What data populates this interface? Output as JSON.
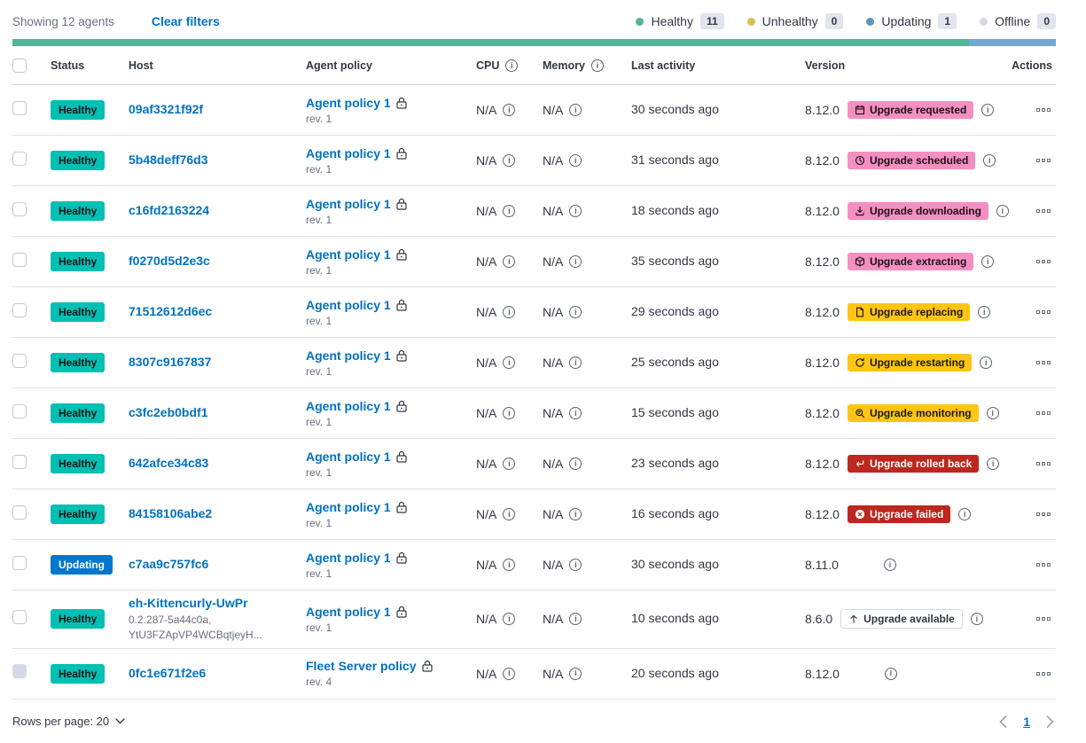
{
  "header": {
    "showing": "Showing 12 agents",
    "clear_filters": "Clear filters",
    "legend": [
      {
        "label": "Healthy",
        "count": "11",
        "color": "#54B399"
      },
      {
        "label": "Unhealthy",
        "count": "0",
        "color": "#D6BF57"
      },
      {
        "label": "Updating",
        "count": "1",
        "color": "#6092C0"
      },
      {
        "label": "Offline",
        "count": "0",
        "color": "#D3DAE6"
      }
    ],
    "status_bar_segments": [
      {
        "color": "#54B399",
        "fraction": 0.9167
      },
      {
        "color": "#73A6D3",
        "fraction": 0.0833
      }
    ]
  },
  "table": {
    "columns": {
      "status": "Status",
      "host": "Host",
      "policy": "Agent policy",
      "cpu": "CPU",
      "memory": "Memory",
      "last_activity": "Last activity",
      "version": "Version",
      "actions": "Actions"
    },
    "rows": [
      {
        "status": "Healthy",
        "host": "09af3321f92f",
        "policy": "Agent policy 1",
        "revision": "rev. 1",
        "cpu": "N/A",
        "memory": "N/A",
        "last_activity": "30 seconds ago",
        "version": "8.12.0",
        "badge": {
          "label": "Upgrade requested",
          "icon": "calendar-icon",
          "style": "pink"
        },
        "badge_info": true,
        "version_info": false,
        "checkbox_disabled": false
      },
      {
        "status": "Healthy",
        "host": "5b48deff76d3",
        "policy": "Agent policy 1",
        "revision": "rev. 1",
        "cpu": "N/A",
        "memory": "N/A",
        "last_activity": "31 seconds ago",
        "version": "8.12.0",
        "badge": {
          "label": "Upgrade scheduled",
          "icon": "clock-icon",
          "style": "pink"
        },
        "badge_info": true,
        "version_info": false,
        "checkbox_disabled": false
      },
      {
        "status": "Healthy",
        "host": "c16fd2163224",
        "policy": "Agent policy 1",
        "revision": "rev. 1",
        "cpu": "N/A",
        "memory": "N/A",
        "last_activity": "18 seconds ago",
        "version": "8.12.0",
        "badge": {
          "label": "Upgrade downloading",
          "icon": "download-icon",
          "style": "pink"
        },
        "badge_info": true,
        "version_info": false,
        "checkbox_disabled": false
      },
      {
        "status": "Healthy",
        "host": "f0270d5d2e3c",
        "policy": "Agent policy 1",
        "revision": "rev. 1",
        "cpu": "N/A",
        "memory": "N/A",
        "last_activity": "35 seconds ago",
        "version": "8.12.0",
        "badge": {
          "label": "Upgrade extracting",
          "icon": "package-icon",
          "style": "pink"
        },
        "badge_info": true,
        "version_info": false,
        "checkbox_disabled": false
      },
      {
        "status": "Healthy",
        "host": "71512612d6ec",
        "policy": "Agent policy 1",
        "revision": "rev. 1",
        "cpu": "N/A",
        "memory": "N/A",
        "last_activity": "29 seconds ago",
        "version": "8.12.0",
        "badge": {
          "label": "Upgrade replacing",
          "icon": "document-icon",
          "style": "yellow"
        },
        "badge_info": true,
        "version_info": false,
        "checkbox_disabled": false
      },
      {
        "status": "Healthy",
        "host": "8307c9167837",
        "policy": "Agent policy 1",
        "revision": "rev. 1",
        "cpu": "N/A",
        "memory": "N/A",
        "last_activity": "25 seconds ago",
        "version": "8.12.0",
        "badge": {
          "label": "Upgrade restarting",
          "icon": "refresh-icon",
          "style": "yellow"
        },
        "badge_info": true,
        "version_info": false,
        "checkbox_disabled": false
      },
      {
        "status": "Healthy",
        "host": "c3fc2eb0bdf1",
        "policy": "Agent policy 1",
        "revision": "rev. 1",
        "cpu": "N/A",
        "memory": "N/A",
        "last_activity": "15 seconds ago",
        "version": "8.12.0",
        "badge": {
          "label": "Upgrade monitoring",
          "icon": "inspect-icon",
          "style": "yellow"
        },
        "badge_info": true,
        "version_info": false,
        "checkbox_disabled": false
      },
      {
        "status": "Healthy",
        "host": "642afce34c83",
        "policy": "Agent policy 1",
        "revision": "rev. 1",
        "cpu": "N/A",
        "memory": "N/A",
        "last_activity": "23 seconds ago",
        "version": "8.12.0",
        "badge": {
          "label": "Upgrade rolled back",
          "icon": "return-icon",
          "style": "red"
        },
        "badge_info": true,
        "version_info": false,
        "checkbox_disabled": false
      },
      {
        "status": "Healthy",
        "host": "84158106abe2",
        "policy": "Agent policy 1",
        "revision": "rev. 1",
        "cpu": "N/A",
        "memory": "N/A",
        "last_activity": "16 seconds ago",
        "version": "8.12.0",
        "badge": {
          "label": "Upgrade failed",
          "icon": "cross-icon",
          "style": "red"
        },
        "badge_info": true,
        "version_info": false,
        "checkbox_disabled": false
      },
      {
        "status": "Updating",
        "host": "c7aa9c757fc6",
        "policy": "Agent policy 1",
        "revision": "rev. 1",
        "cpu": "N/A",
        "memory": "N/A",
        "last_activity": "30 seconds ago",
        "version": "8.11.0",
        "badge": null,
        "badge_info": false,
        "version_info": true,
        "checkbox_disabled": false
      },
      {
        "status": "Healthy",
        "host": "eh-Kittencurly-UwPr",
        "host_meta": [
          "0.2.287-5a44c0a,",
          "YtU3FZApVP4WCBqtjeyH..."
        ],
        "policy": "Agent policy 1",
        "revision": "rev. 1",
        "cpu": "N/A",
        "memory": "N/A",
        "last_activity": "10 seconds ago",
        "version": "8.6.0",
        "badge": {
          "label": "Upgrade available",
          "icon": "arrow-up-icon",
          "style": "hollow"
        },
        "badge_info": false,
        "version_info": false,
        "checkbox_disabled": false
      },
      {
        "status": "Healthy",
        "host": "0fc1e671f2e6",
        "policy": "Fleet Server policy",
        "policy_locked": true,
        "revision": "rev. 4",
        "cpu": "N/A",
        "memory": "N/A",
        "last_activity": "20 seconds ago",
        "version": "8.12.0",
        "badge": null,
        "badge_info": false,
        "version_info": false,
        "checkbox_disabled": true
      }
    ]
  },
  "status_colors": {
    "healthy": {
      "bg": "#00BFB3",
      "text": "#0D1418"
    },
    "updating": {
      "bg": "#0077CC",
      "text": "#FFFFFF"
    }
  },
  "badge_styles": {
    "pink": {
      "bg": "#F48FC1",
      "text": "#1E0E16",
      "border": "none"
    },
    "yellow": {
      "bg": "#FEC514",
      "text": "#1E1707",
      "border": "none"
    },
    "red": {
      "bg": "#BD271E",
      "text": "#FFFFFF",
      "border": "none"
    },
    "hollow": {
      "bg": "#FFFFFF",
      "text": "#343741",
      "border": "1px solid #D3DAE6"
    }
  },
  "footer": {
    "rows_per_page_label": "Rows per page: 20",
    "page": "1"
  }
}
